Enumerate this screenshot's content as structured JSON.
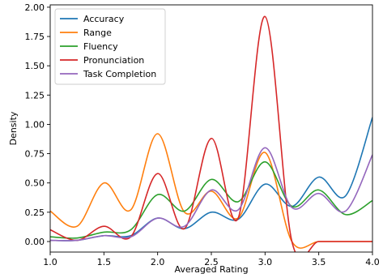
{
  "chart_data": {
    "type": "line",
    "title": "",
    "xlabel": "Averaged Rating",
    "ylabel": "Density",
    "xlim": [
      1.0,
      4.0
    ],
    "ylim": [
      -0.09,
      2.02
    ],
    "xticks": [
      1.0,
      1.5,
      2.0,
      2.5,
      3.0,
      3.5,
      4.0
    ],
    "yticks": [
      0.0,
      0.25,
      0.5,
      0.75,
      1.0,
      1.25,
      1.5,
      1.75,
      2.0
    ],
    "xtick_labels": [
      "1.0",
      "1.5",
      "2.0",
      "2.5",
      "3.0",
      "3.5",
      "4.0"
    ],
    "ytick_labels": [
      "0.00",
      "0.25",
      "0.50",
      "0.75",
      "1.00",
      "1.25",
      "1.50",
      "1.75",
      "2.00"
    ],
    "grid": false,
    "legend_position": "top-left",
    "series": [
      {
        "name": "Accuracy",
        "color": "#1f77b4",
        "x": [
          1.0,
          1.25,
          1.5,
          1.75,
          2.0,
          2.25,
          2.5,
          2.75,
          3.0,
          3.25,
          3.5,
          3.75,
          4.0
        ],
        "y": [
          0.01,
          0.01,
          0.05,
          0.05,
          0.2,
          0.11,
          0.25,
          0.19,
          0.49,
          0.3,
          0.55,
          0.39,
          1.06
        ]
      },
      {
        "name": "Range",
        "color": "#ff7f0e",
        "x": [
          1.0,
          1.25,
          1.5,
          1.75,
          2.0,
          2.25,
          2.5,
          2.75,
          3.0,
          3.25,
          3.5,
          3.75,
          4.0
        ],
        "y": [
          0.26,
          0.13,
          0.5,
          0.27,
          0.92,
          0.25,
          0.43,
          0.2,
          0.76,
          0.0,
          0.0,
          0.0,
          0.0
        ]
      },
      {
        "name": "Fluency",
        "color": "#2ca02c",
        "x": [
          1.0,
          1.25,
          1.5,
          1.75,
          2.0,
          2.25,
          2.5,
          2.75,
          3.0,
          3.25,
          3.5,
          3.75,
          4.0
        ],
        "y": [
          0.04,
          0.03,
          0.08,
          0.1,
          0.4,
          0.26,
          0.53,
          0.34,
          0.68,
          0.3,
          0.44,
          0.23,
          0.35
        ]
      },
      {
        "name": "Pronunciation",
        "color": "#d62728",
        "x": [
          1.0,
          1.25,
          1.5,
          1.75,
          2.0,
          2.25,
          2.5,
          2.75,
          3.0,
          3.25,
          3.5,
          3.75,
          4.0
        ],
        "y": [
          0.1,
          0.01,
          0.13,
          0.04,
          0.58,
          0.11,
          0.88,
          0.2,
          1.92,
          0.0,
          0.0,
          0.0,
          0.0
        ]
      },
      {
        "name": "Task Completion",
        "color": "#9467bd",
        "x": [
          1.0,
          1.25,
          1.5,
          1.75,
          2.0,
          2.25,
          2.5,
          2.75,
          3.0,
          3.25,
          3.5,
          3.75,
          4.0
        ],
        "y": [
          0.01,
          0.01,
          0.05,
          0.04,
          0.2,
          0.13,
          0.44,
          0.27,
          0.8,
          0.29,
          0.41,
          0.26,
          0.74
        ]
      }
    ]
  }
}
